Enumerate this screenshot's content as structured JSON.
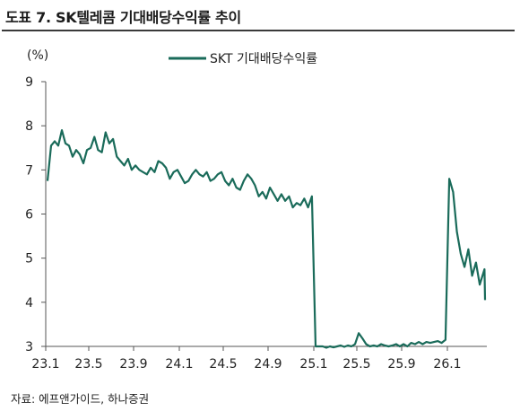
{
  "title": "도표 7. SK텔레콤 기대배당수익률 추이",
  "source": "자료: 에프앤가이드, 하나증권",
  "chart_data": {
    "type": "line",
    "y_unit_label": "(%)",
    "ylim": [
      3,
      9
    ],
    "y_ticks": [
      "3",
      "4",
      "5",
      "6",
      "7",
      "8",
      "9"
    ],
    "x_ticks": [
      "23.1",
      "23.5",
      "23.9",
      "24.1",
      "24.5",
      "24.9",
      "25.1",
      "25.5",
      "25.9",
      "26.1"
    ],
    "grid": false,
    "legend_position": "top-center",
    "color": "#1a6b5a",
    "series": [
      {
        "name": "SKT 기대배당수익률",
        "x": [
          "2023-01",
          "2023-01",
          "2023-01",
          "2023-02",
          "2023-02",
          "2023-02",
          "2023-03",
          "2023-03",
          "2023-03",
          "2023-04",
          "2023-04",
          "2023-04",
          "2023-05",
          "2023-05",
          "2023-05",
          "2023-06",
          "2023-06",
          "2023-06",
          "2023-07",
          "2023-07",
          "2023-07",
          "2023-08",
          "2023-08",
          "2023-08",
          "2023-09",
          "2023-09",
          "2023-09",
          "2023-10",
          "2023-10",
          "2023-10",
          "2023-11",
          "2023-11",
          "2023-11",
          "2023-12",
          "2023-12",
          "2023-12",
          "2024-01",
          "2024-01",
          "2024-01",
          "2024-02",
          "2024-02",
          "2024-02",
          "2024-03",
          "2024-03",
          "2024-03",
          "2024-04",
          "2024-04",
          "2024-04",
          "2024-05",
          "2024-05",
          "2024-05",
          "2024-06",
          "2024-06",
          "2024-06",
          "2024-07",
          "2024-07",
          "2024-07",
          "2024-08",
          "2024-08",
          "2024-08",
          "2024-09",
          "2024-09",
          "2024-09",
          "2024-10",
          "2024-10",
          "2024-10",
          "2024-11",
          "2024-11",
          "2024-11",
          "2024-12",
          "2024-12",
          "2024-12",
          "2025-01",
          "2025-01",
          "2025-01",
          "2025-02",
          "2025-02",
          "2025-02",
          "2025-03",
          "2025-03",
          "2025-03",
          "2025-04",
          "2025-04",
          "2025-04",
          "2025-05",
          "2025-05",
          "2025-05",
          "2025-06",
          "2025-06",
          "2025-06",
          "2025-07",
          "2025-07",
          "2025-07",
          "2025-08",
          "2025-08",
          "2025-08",
          "2025-09",
          "2025-09",
          "2025-09",
          "2025-10",
          "2025-10",
          "2025-10",
          "2025-11",
          "2025-11",
          "2025-11",
          "2025-12",
          "2025-12",
          "2025-12",
          "2026-01",
          "2026-01",
          "2026-01",
          "2026-02",
          "2026-02",
          "2026-02",
          "2026-03",
          "2026-03",
          "2026-03",
          "2026-04",
          "2026-04"
        ],
        "values": [
          6.75,
          7.55,
          7.65,
          7.55,
          7.9,
          7.6,
          7.55,
          7.3,
          7.45,
          7.35,
          7.15,
          7.45,
          7.5,
          7.75,
          7.45,
          7.4,
          7.85,
          7.6,
          7.7,
          7.3,
          7.2,
          7.1,
          7.25,
          7.0,
          7.1,
          7.0,
          6.95,
          6.9,
          7.05,
          6.95,
          7.2,
          7.15,
          7.05,
          6.8,
          6.95,
          7.0,
          6.85,
          6.7,
          6.75,
          6.9,
          7.0,
          6.9,
          6.85,
          6.95,
          6.75,
          6.8,
          6.9,
          6.95,
          6.75,
          6.65,
          6.8,
          6.6,
          6.55,
          6.75,
          6.9,
          6.8,
          6.65,
          6.4,
          6.5,
          6.35,
          6.6,
          6.45,
          6.3,
          6.45,
          6.3,
          6.4,
          6.15,
          6.25,
          6.2,
          6.35,
          6.15,
          6.4,
          3.0,
          3.0,
          3.0,
          2.97,
          3.0,
          2.98,
          3.0,
          3.02,
          2.99,
          3.02,
          3.0,
          3.05,
          3.3,
          3.18,
          3.05,
          3.0,
          3.02,
          3.0,
          3.05,
          3.02,
          3.0,
          3.02,
          3.05,
          3.0,
          3.05,
          3.0,
          3.08,
          3.05,
          3.1,
          3.05,
          3.1,
          3.08,
          3.1,
          3.12,
          3.08,
          3.15,
          6.8,
          6.5,
          5.6,
          5.1,
          4.8,
          5.2,
          4.6,
          4.9,
          4.4,
          4.75,
          4.05
        ]
      }
    ]
  }
}
